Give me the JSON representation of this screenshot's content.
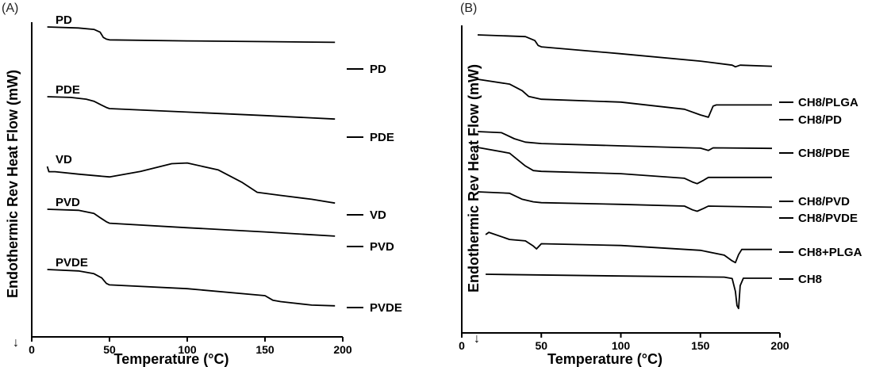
{
  "chart_data": [
    {
      "type": "line",
      "panel_label": "(A)",
      "xlabel": "Temperature (°C)",
      "ylabel": "Endothermic Rev Heat Flow (mW)",
      "xlim": [
        0,
        200
      ],
      "xticks": [
        "0",
        "50",
        "100",
        "150",
        "200"
      ],
      "grid": false,
      "series": [
        {
          "name": "PD",
          "x": [
            10,
            30,
            40,
            44,
            46,
            48,
            50,
            100,
            150,
            195
          ],
          "y": [
            10,
            9.7,
            9.3,
            8.5,
            7.0,
            6.5,
            6.3,
            6.0,
            5.8,
            5.6
          ]
        },
        {
          "name": "PDE",
          "x": [
            10,
            25,
            35,
            40,
            44,
            48,
            50,
            100,
            150,
            195
          ],
          "y": [
            10,
            9.8,
            9.3,
            8.7,
            7.8,
            6.9,
            6.6,
            5.6,
            4.6,
            3.6
          ]
        },
        {
          "name": "VD",
          "x": [
            10,
            11,
            15,
            30,
            50,
            70,
            90,
            100,
            120,
            135,
            145,
            160,
            180,
            195
          ],
          "y": [
            10,
            8.5,
            8.5,
            7.8,
            7.0,
            8.6,
            10.8,
            11.0,
            9.0,
            5.5,
            2.6,
            1.7,
            0.6,
            -0.5
          ]
        },
        {
          "name": "PVD",
          "x": [
            10,
            30,
            40,
            44,
            48,
            50,
            100,
            150,
            195
          ],
          "y": [
            10,
            9.7,
            8.8,
            7.6,
            6.4,
            6.0,
            4.7,
            3.5,
            2.3
          ]
        },
        {
          "name": "PVDE",
          "x": [
            10,
            30,
            40,
            45,
            48,
            50,
            100,
            150,
            155,
            160,
            180,
            195
          ],
          "y": [
            10,
            9.6,
            8.8,
            7.6,
            6.0,
            5.6,
            4.5,
            2.5,
            1.2,
            0.8,
            -0.2,
            -0.4
          ]
        }
      ],
      "curve_labels_left": [
        "PD",
        "PDE",
        "VD",
        "PVD",
        "PVDE"
      ],
      "curve_labels_right": [
        "PD",
        "PDE",
        "VD",
        "PVD",
        "PVDE"
      ]
    },
    {
      "type": "line",
      "panel_label": "(B)",
      "xlabel": "Temperature (°C)",
      "ylabel": "Endothermic Rev Heat Flow (mW)",
      "xlim": [
        0,
        200
      ],
      "xticks": [
        "0",
        "50",
        "100",
        "150",
        "200"
      ],
      "grid": false,
      "series": [
        {
          "name": "CH8/PLGA",
          "x": [
            10,
            40,
            46,
            48,
            50,
            100,
            150,
            170,
            172,
            175,
            195
          ],
          "y": [
            10,
            9.4,
            8.0,
            6.3,
            5.8,
            3.4,
            0.8,
            -0.6,
            -1.2,
            -0.6,
            -1.0
          ]
        },
        {
          "name": "CH8/PD",
          "x": [
            10,
            30,
            38,
            42,
            50,
            100,
            140,
            150,
            155,
            158,
            160,
            195
          ],
          "y": [
            10,
            8.3,
            6.0,
            4.0,
            3.0,
            2.0,
            -0.5,
            -2.5,
            -3.3,
            0.6,
            1.0,
            1.0
          ]
        },
        {
          "name": "CH8/PDE",
          "x": [
            10,
            25,
            33,
            40,
            50,
            100,
            150,
            155,
            158,
            195
          ],
          "y": [
            10,
            9.6,
            7.5,
            6.3,
            5.8,
            5.0,
            4.2,
            3.4,
            4.3,
            4.1
          ]
        },
        {
          "name": "CH8/PVD",
          "x": [
            10,
            30,
            40,
            45,
            50,
            100,
            140,
            145,
            148,
            152,
            155,
            195
          ],
          "y": [
            10,
            8.0,
            3.5,
            1.9,
            1.6,
            0.8,
            -0.8,
            -2.1,
            -2.7,
            -1.5,
            -0.5,
            -0.5
          ]
        },
        {
          "name": "CH8/PVDE",
          "x": [
            10,
            30,
            38,
            45,
            50,
            100,
            140,
            145,
            148,
            152,
            155,
            195
          ],
          "y": [
            10,
            9.5,
            7.4,
            6.5,
            6.2,
            5.6,
            5.0,
            3.7,
            3.2,
            4.2,
            5.0,
            4.6
          ]
        },
        {
          "name": "CH8+PLGA",
          "x": [
            15,
            17,
            30,
            40,
            45,
            47,
            50,
            100,
            150,
            165,
            170,
            172,
            174,
            176,
            195
          ],
          "y": [
            10,
            10.8,
            8.3,
            7.8,
            6.0,
            5.0,
            6.8,
            6.2,
            4.5,
            2.8,
            0.8,
            0.2,
            3.0,
            4.8,
            4.8
          ]
        },
        {
          "name": "CH8",
          "x": [
            15,
            100,
            165,
            170,
            172,
            173,
            174,
            175,
            177,
            195
          ],
          "y": [
            10,
            9.4,
            9.0,
            8.5,
            4.0,
            -1.0,
            -2.0,
            6.0,
            8.6,
            8.6
          ]
        }
      ],
      "curve_labels_right": [
        "CH8/PLGA",
        "CH8/PD",
        "CH8/PDE",
        "CH8/PVD",
        "CH8/PVDE",
        "CH8+PLGA",
        "CH8"
      ]
    }
  ]
}
